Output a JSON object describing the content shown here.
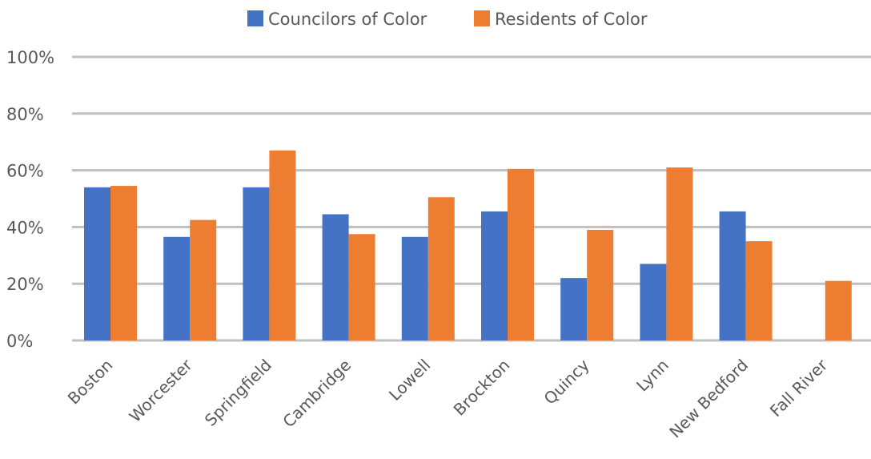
{
  "chart_data": {
    "type": "bar",
    "categories": [
      "Boston",
      "Worcester",
      "Springfield",
      "Cambridge",
      "Lowell",
      "Brockton",
      "Quincy",
      "Lynn",
      "New Bedford",
      "Fall River"
    ],
    "series": [
      {
        "name": "Councilors of Color",
        "color": "#4472c4",
        "values": [
          54,
          36.5,
          54,
          44.5,
          36.5,
          45.5,
          22,
          27,
          45.5,
          null
        ]
      },
      {
        "name": "Residents of Color",
        "color": "#ed7d31",
        "values": [
          54.5,
          42.5,
          67,
          37.5,
          50.5,
          60.5,
          39,
          61,
          35,
          21
        ]
      }
    ],
    "yticks": [
      "0%",
      "20%",
      "40%",
      "60%",
      "80%",
      "100%"
    ],
    "ylim": [
      0,
      100
    ],
    "grid": true,
    "legend": "top-center"
  }
}
